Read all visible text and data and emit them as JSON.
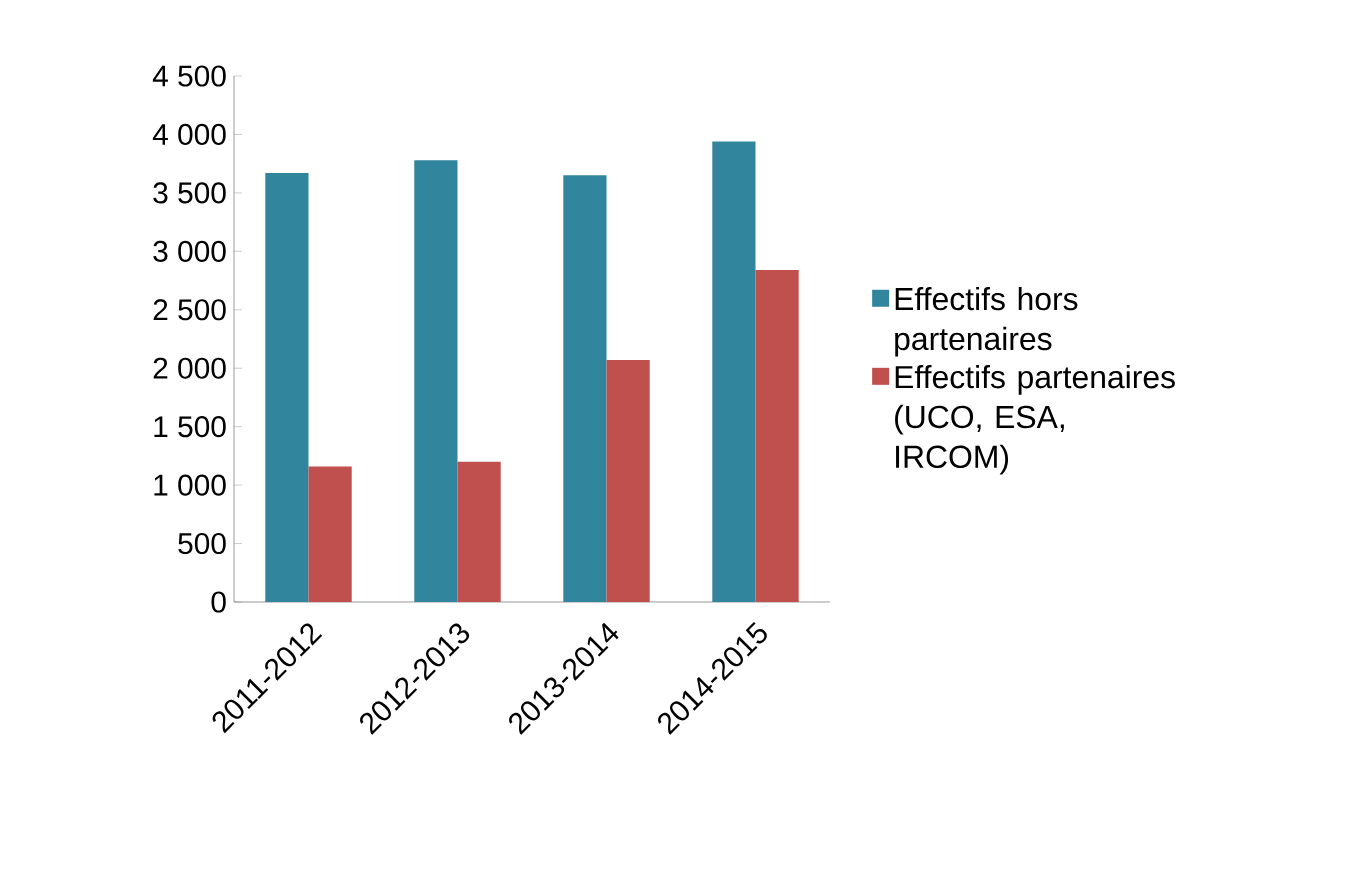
{
  "chart_data": {
    "type": "bar",
    "categories": [
      "2011-2012",
      "2012-2013",
      "2013-2014",
      "2014-2015"
    ],
    "series": [
      {
        "name": "Effectifs hors partenaires",
        "color": "#31859c",
        "values": [
          3670,
          3780,
          3650,
          3940
        ]
      },
      {
        "name": "Effectifs partenaires (UCO, ESA, IRCOM)",
        "color": "#c0504d",
        "values": [
          1160,
          1200,
          2070,
          2840
        ]
      }
    ],
    "ylim": [
      0,
      4500
    ],
    "yticks": [
      0,
      500,
      {
        "value": 1000,
        "label": "1 000"
      },
      {
        "value": 1500,
        "label": "1 500"
      },
      {
        "value": 2000,
        "label": "2 000"
      },
      {
        "value": 2500,
        "label": "2 500"
      },
      {
        "value": 3000,
        "label": "3 000"
      },
      {
        "value": 3500,
        "label": "3 500"
      },
      {
        "value": 4000,
        "label": "4 000"
      },
      {
        "value": 4500,
        "label": "4 500"
      }
    ],
    "legend": "right"
  }
}
